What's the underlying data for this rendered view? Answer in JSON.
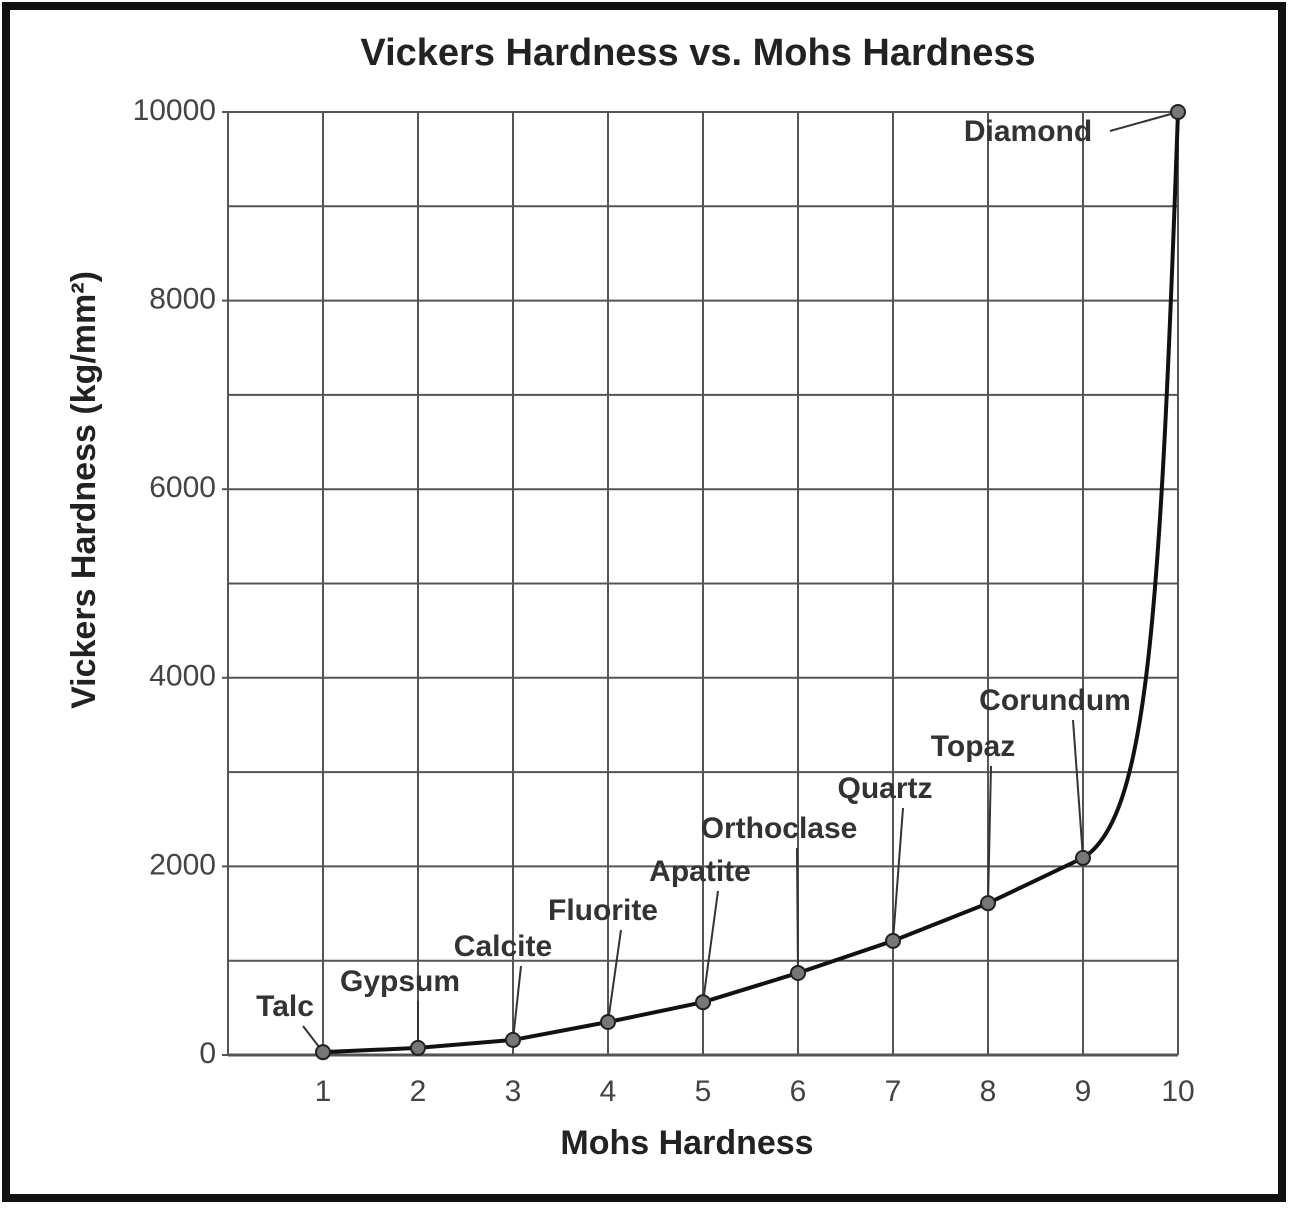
{
  "chart_data": {
    "type": "line",
    "title": "Vickers Hardness vs. Mohs Hardness",
    "x_label": "Mohs Hardness",
    "y_label": "Vickers Hardness (kg/mm²)",
    "x": [
      1,
      2,
      3,
      4,
      5,
      6,
      7,
      8,
      9,
      10
    ],
    "series": [
      {
        "color": "#111111",
        "values": [
          30,
          75,
          160,
          350,
          560,
          870,
          1210,
          1610,
          2090,
          10000
        ],
        "point_labels": [
          "Talc",
          "Gypsum",
          "Calcite",
          "Fluorite",
          "Apatite",
          "Orthoclase",
          "Quartz",
          "Topaz",
          "Corundum",
          "Diamond"
        ]
      }
    ],
    "xlim": [
      0,
      10
    ],
    "xticks": [
      1,
      2,
      3,
      4,
      5,
      6,
      7,
      8,
      9,
      10
    ],
    "ylim": [
      0,
      10000
    ],
    "yticks": [
      0,
      2000,
      4000,
      6000,
      8000,
      10000
    ],
    "ygrid": [
      1000,
      2000,
      3000,
      4000,
      5000,
      6000,
      7000,
      8000,
      9000,
      10000
    ],
    "grid": true
  }
}
